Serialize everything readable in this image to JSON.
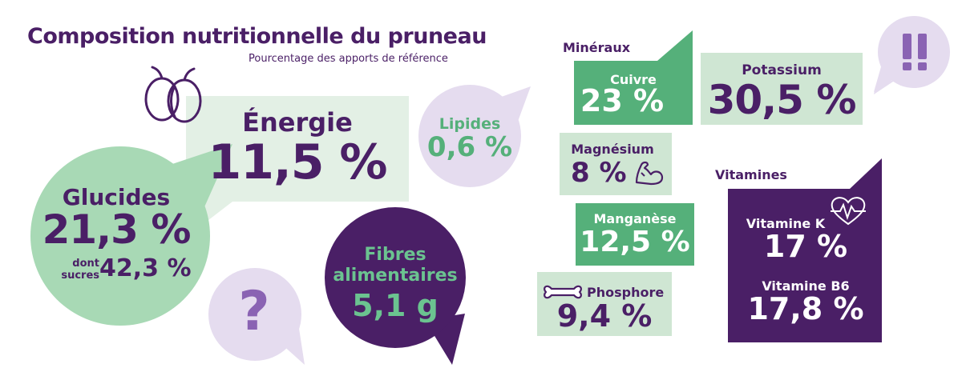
{
  "header": {
    "title": "Composition nutritionnelle du pruneau",
    "subtitle": "Pourcentage des apports de référence"
  },
  "colors": {
    "purple_dark": "#4a1f66",
    "purple_light": "#e5dcef",
    "green": "#55b07a",
    "green_light": "#cfe6d3",
    "green_pale": "#e3f0e5",
    "mint": "#a8d9b5"
  },
  "nutrients": {
    "energie": {
      "label": "Énergie",
      "value": "11,5 %"
    },
    "lipides": {
      "label": "Lipides",
      "value": "0,6 %"
    },
    "glucides": {
      "label": "Glucides",
      "value": "21,3 %",
      "sucres_label_1": "dont",
      "sucres_label_2": "sucres",
      "sucres_value": "42,3 %"
    },
    "fibres": {
      "label_1": "Fibres",
      "label_2": "alimentaires",
      "value": "5,1 g"
    },
    "question": "?"
  },
  "minerals": {
    "heading": "Minéraux",
    "cuivre": {
      "label": "Cuivre",
      "value": "23 %"
    },
    "potassium": {
      "label": "Potassium",
      "value": "30,5 %"
    },
    "magnesium": {
      "label": "Magnésium",
      "value": "8 %"
    },
    "manganese": {
      "label": "Manganèse",
      "value": "12,5 %"
    },
    "phosphore": {
      "label": "Phosphore",
      "value": "9,4 %"
    }
  },
  "vitamins": {
    "heading": "Vitamines",
    "vitamine_k": {
      "label": "Vitamine K",
      "value": "17 %"
    },
    "vitamine_b6": {
      "label": "Vitamine B6",
      "value": "17,8 %"
    }
  },
  "icons": [
    "prune-icon",
    "muscle-icon",
    "bone-icon",
    "heart-pulse-icon",
    "exclamation-icon",
    "question-icon"
  ]
}
